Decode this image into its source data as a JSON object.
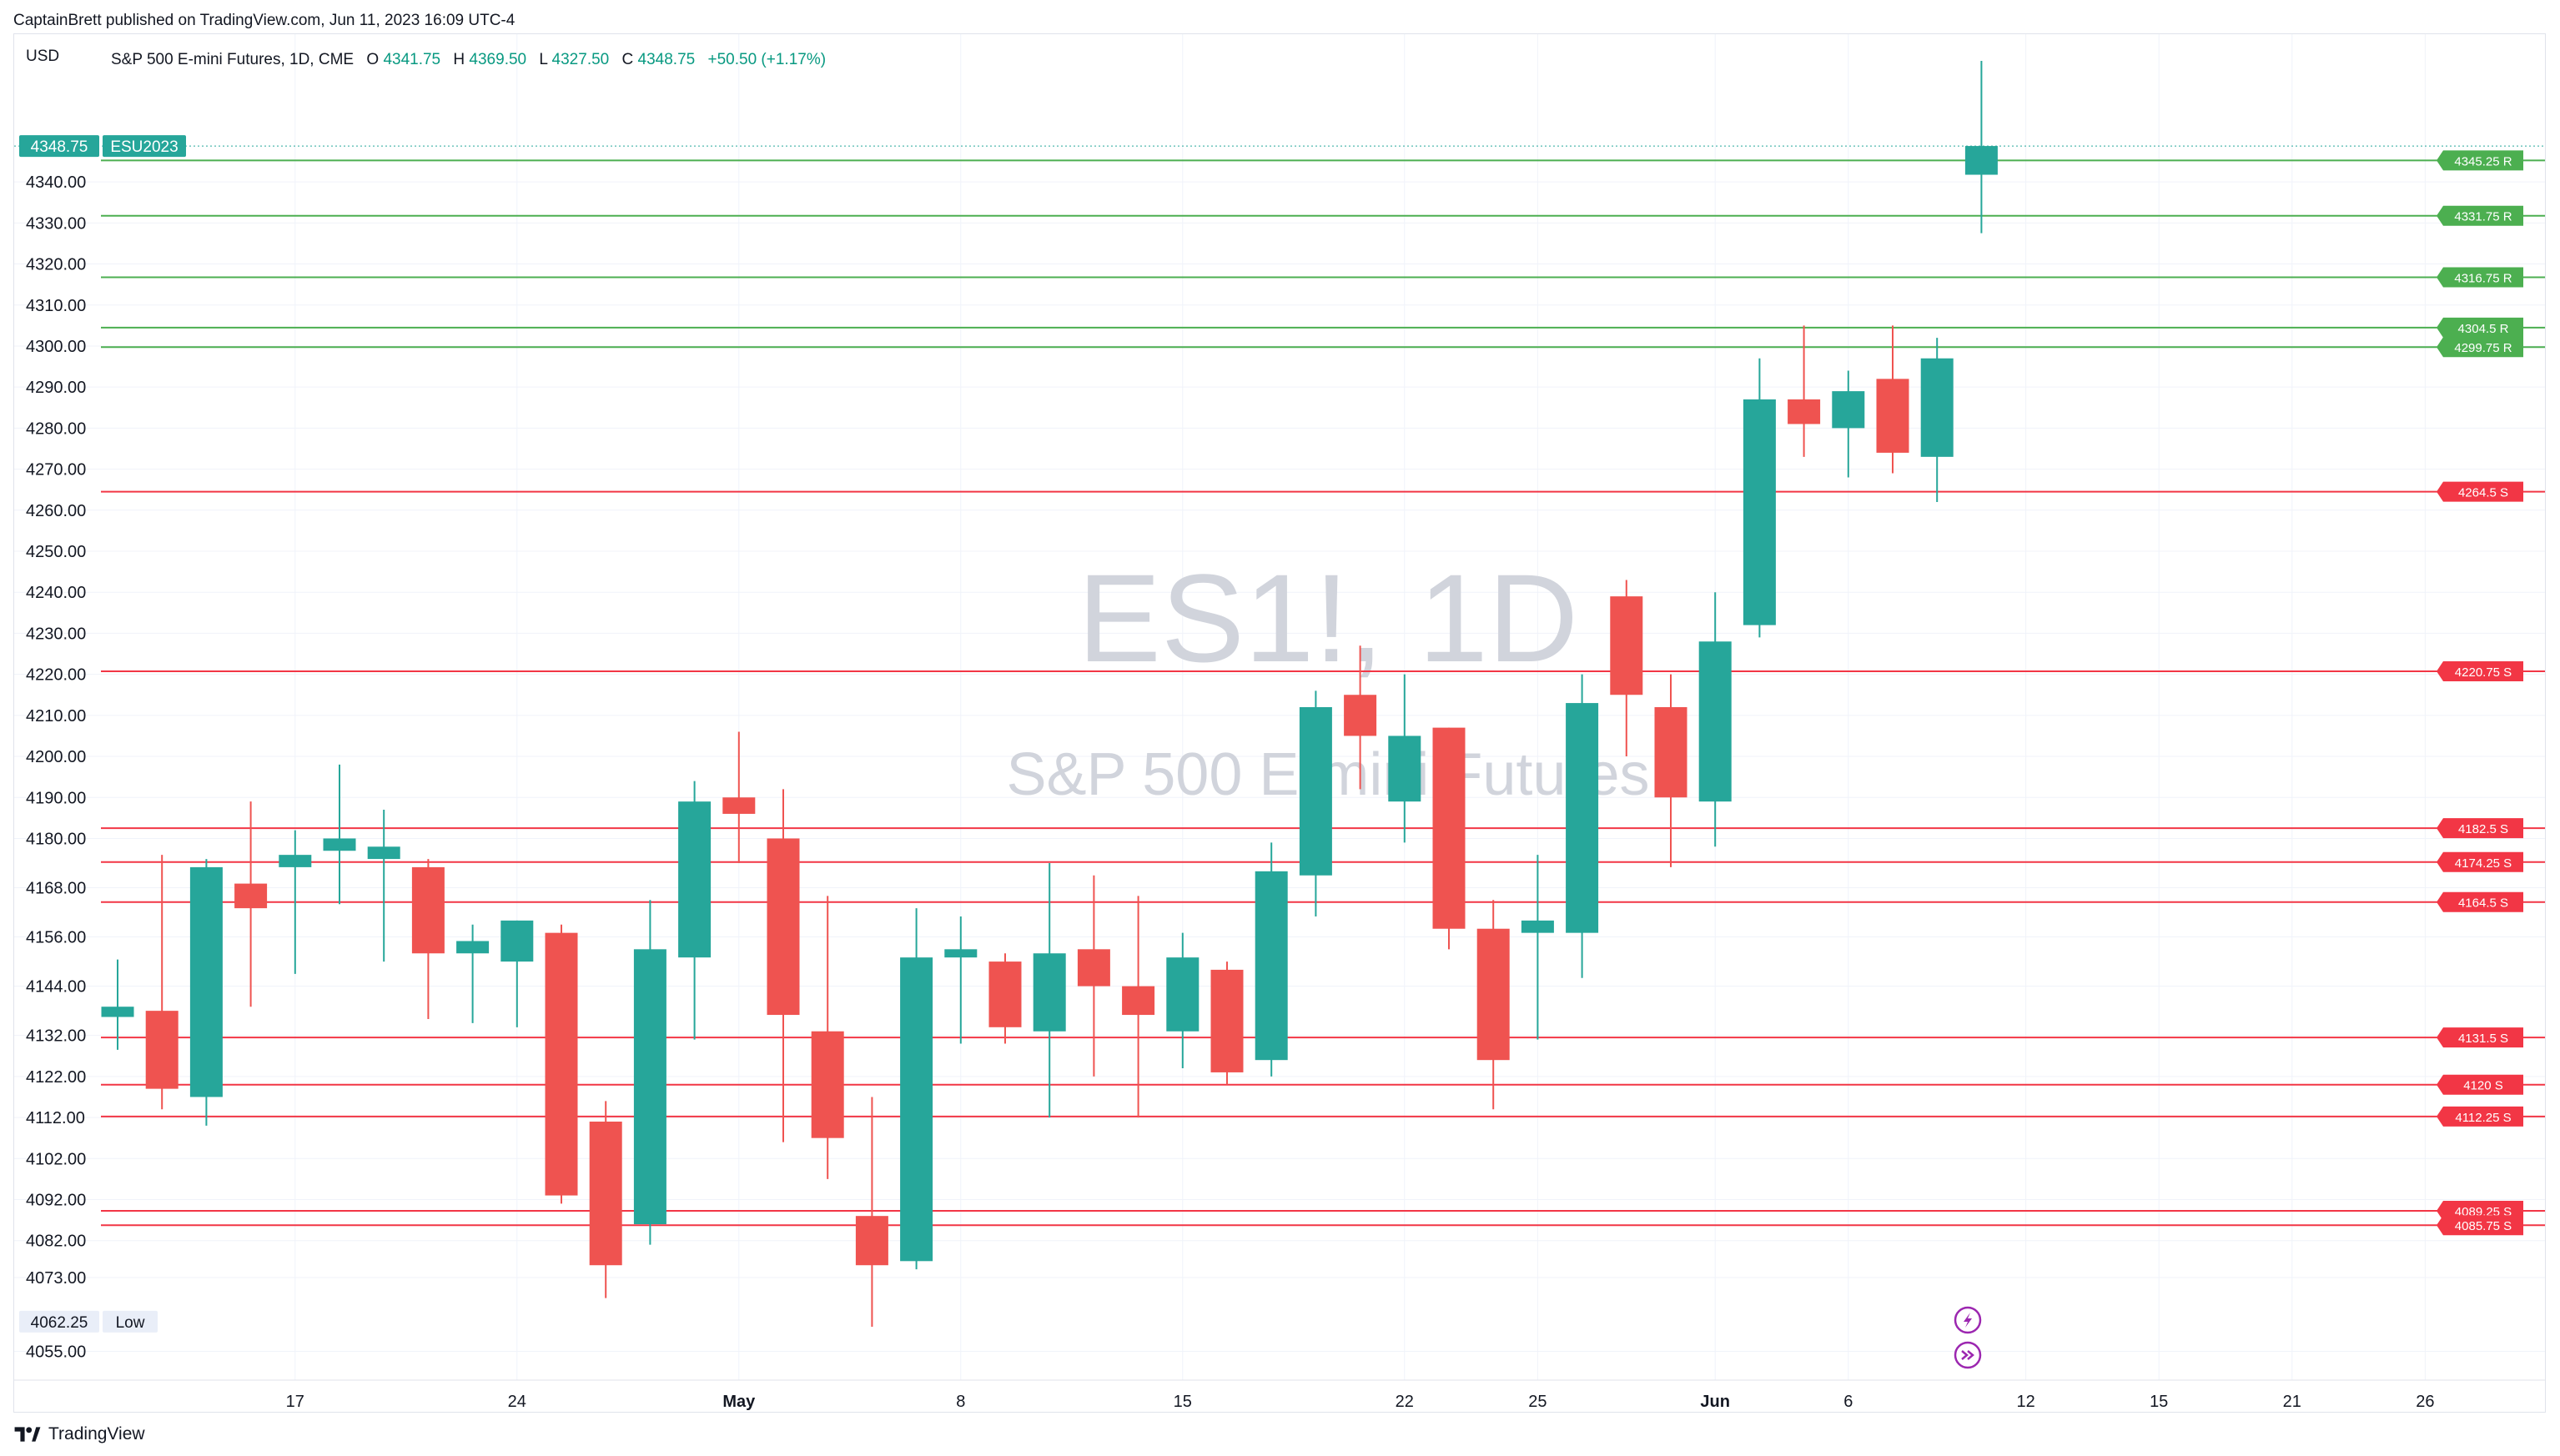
{
  "header": {
    "publish_line": "CaptainBrett published on TradingView.com, Jun 11, 2023 16:09 UTC-4"
  },
  "legend": {
    "currency": "USD",
    "symbol_name": "S&P 500 E-mini Futures, 1D, CME",
    "o_label": "O",
    "o_value": "4341.75",
    "h_label": "H",
    "h_value": "4369.50",
    "l_label": "L",
    "l_value": "4327.50",
    "c_label": "C",
    "c_value": "4348.75",
    "change": "+50.50 (+1.17%)"
  },
  "badges": {
    "last_price": "4348.75",
    "contract": "ESU2023",
    "low_value": "4062.25",
    "low_label": "Low"
  },
  "watermark": {
    "line1": "ES1!, 1D",
    "line2": "S&P 500 E-mini Futures"
  },
  "footer": {
    "brand": "TradingView"
  },
  "colors": {
    "up": "#26a69a",
    "down": "#ef5350",
    "resistance": "#4caf50",
    "support": "#f23645",
    "grid": "#f0f3fa",
    "axis_text": "#131722",
    "watermark": "#d1d4dc",
    "event_icon": "#9c27b0"
  },
  "icons": [
    "lightning-event-icon",
    "dividend-arrows-event-icon",
    "tradingview-logo-icon"
  ],
  "chart_data": {
    "type": "candlestick",
    "ylim": [
      4048,
      4376
    ],
    "y_ticks": [
      4055.0,
      4073.0,
      4082.0,
      4092.0,
      4102.0,
      4112.0,
      4122.0,
      4132.0,
      4144.0,
      4156.0,
      4168.0,
      4180.0,
      4190.0,
      4200.0,
      4210.0,
      4220.0,
      4230.0,
      4240.0,
      4250.0,
      4260.0,
      4270.0,
      4280.0,
      4290.0,
      4300.0,
      4310.0,
      4320.0,
      4330.0,
      4340.0
    ],
    "x_ticks": [
      {
        "label": "17",
        "slot": 4,
        "bold": false
      },
      {
        "label": "24",
        "slot": 9,
        "bold": false
      },
      {
        "label": "May",
        "slot": 14,
        "bold": true
      },
      {
        "label": "8",
        "slot": 19,
        "bold": false
      },
      {
        "label": "15",
        "slot": 24,
        "bold": false
      },
      {
        "label": "22",
        "slot": 29,
        "bold": false
      },
      {
        "label": "25",
        "slot": 32,
        "bold": false
      },
      {
        "label": "Jun",
        "slot": 36,
        "bold": true
      },
      {
        "label": "6",
        "slot": 39,
        "bold": false
      },
      {
        "label": "12",
        "slot": 43,
        "bold": false
      },
      {
        "label": "15",
        "slot": 46,
        "bold": false
      },
      {
        "label": "21",
        "slot": 49,
        "bold": false
      },
      {
        "label": "26",
        "slot": 52,
        "bold": false
      }
    ],
    "candles": [
      {
        "slot": 0,
        "o": 4136.5,
        "h": 4150.5,
        "l": 4128.5,
        "c": 4139.0
      },
      {
        "slot": 1,
        "o": 4138.0,
        "h": 4176.0,
        "l": 4114.0,
        "c": 4119.0
      },
      {
        "slot": 2,
        "o": 4117.0,
        "h": 4175.0,
        "l": 4110.0,
        "c": 4173.0
      },
      {
        "slot": 3,
        "o": 4169.0,
        "h": 4189.0,
        "l": 4139.0,
        "c": 4163.0
      },
      {
        "slot": 4,
        "o": 4173.0,
        "h": 4182.0,
        "l": 4147.0,
        "c": 4176.0
      },
      {
        "slot": 5,
        "o": 4177.0,
        "h": 4198.0,
        "l": 4164.0,
        "c": 4180.0
      },
      {
        "slot": 6,
        "o": 4175.0,
        "h": 4187.0,
        "l": 4150.0,
        "c": 4178.0
      },
      {
        "slot": 7,
        "o": 4173.0,
        "h": 4175.0,
        "l": 4136.0,
        "c": 4152.0
      },
      {
        "slot": 8,
        "o": 4152.0,
        "h": 4159.0,
        "l": 4135.0,
        "c": 4155.0
      },
      {
        "slot": 9,
        "o": 4150.0,
        "h": 4160.0,
        "l": 4134.0,
        "c": 4160.0
      },
      {
        "slot": 10,
        "o": 4157.0,
        "h": 4159.0,
        "l": 4091.0,
        "c": 4093.0
      },
      {
        "slot": 11,
        "o": 4111.0,
        "h": 4116.0,
        "l": 4068.0,
        "c": 4076.0
      },
      {
        "slot": 12,
        "o": 4086.0,
        "h": 4165.0,
        "l": 4081.0,
        "c": 4153.0
      },
      {
        "slot": 13,
        "o": 4151.0,
        "h": 4194.0,
        "l": 4131.0,
        "c": 4189.0
      },
      {
        "slot": 14,
        "o": 4190.0,
        "h": 4206.0,
        "l": 4174.0,
        "c": 4186.0
      },
      {
        "slot": 15,
        "o": 4180.0,
        "h": 4192.0,
        "l": 4106.0,
        "c": 4137.0
      },
      {
        "slot": 16,
        "o": 4133.0,
        "h": 4166.0,
        "l": 4097.0,
        "c": 4107.0
      },
      {
        "slot": 17,
        "o": 4088.0,
        "h": 4117.0,
        "l": 4061.0,
        "c": 4076.0
      },
      {
        "slot": 18,
        "o": 4077.0,
        "h": 4163.0,
        "l": 4075.0,
        "c": 4151.0
      },
      {
        "slot": 19,
        "o": 4151.0,
        "h": 4161.0,
        "l": 4130.0,
        "c": 4153.0
      },
      {
        "slot": 20,
        "o": 4150.0,
        "h": 4152.0,
        "l": 4130.0,
        "c": 4134.0
      },
      {
        "slot": 21,
        "o": 4133.0,
        "h": 4174.0,
        "l": 4112.0,
        "c": 4152.0
      },
      {
        "slot": 22,
        "o": 4153.0,
        "h": 4171.0,
        "l": 4122.0,
        "c": 4144.0
      },
      {
        "slot": 23,
        "o": 4144.0,
        "h": 4166.0,
        "l": 4112.0,
        "c": 4137.0
      },
      {
        "slot": 24,
        "o": 4133.0,
        "h": 4157.0,
        "l": 4124.0,
        "c": 4151.0
      },
      {
        "slot": 25,
        "o": 4148.0,
        "h": 4150.0,
        "l": 4120.0,
        "c": 4123.0
      },
      {
        "slot": 26,
        "o": 4126.0,
        "h": 4179.0,
        "l": 4122.0,
        "c": 4172.0
      },
      {
        "slot": 27,
        "o": 4171.0,
        "h": 4216.0,
        "l": 4161.0,
        "c": 4212.0
      },
      {
        "slot": 28,
        "o": 4215.0,
        "h": 4227.0,
        "l": 4192.0,
        "c": 4205.0
      },
      {
        "slot": 29,
        "o": 4189.0,
        "h": 4220.0,
        "l": 4179.0,
        "c": 4205.0
      },
      {
        "slot": 30,
        "o": 4207.0,
        "h": 4207.0,
        "l": 4153.0,
        "c": 4158.0
      },
      {
        "slot": 31,
        "o": 4158.0,
        "h": 4165.0,
        "l": 4114.0,
        "c": 4126.0
      },
      {
        "slot": 32,
        "o": 4157.0,
        "h": 4176.0,
        "l": 4131.0,
        "c": 4160.0
      },
      {
        "slot": 33,
        "o": 4157.0,
        "h": 4220.0,
        "l": 4146.0,
        "c": 4213.0
      },
      {
        "slot": 34,
        "o": 4239.0,
        "h": 4243.0,
        "l": 4200.0,
        "c": 4215.0
      },
      {
        "slot": 35,
        "o": 4212.0,
        "h": 4220.0,
        "l": 4173.0,
        "c": 4190.0
      },
      {
        "slot": 36,
        "o": 4189.0,
        "h": 4240.0,
        "l": 4178.0,
        "c": 4228.0
      },
      {
        "slot": 37,
        "o": 4232.0,
        "h": 4297.0,
        "l": 4229.0,
        "c": 4287.0
      },
      {
        "slot": 38,
        "o": 4287.0,
        "h": 4305.0,
        "l": 4273.0,
        "c": 4281.0
      },
      {
        "slot": 39,
        "o": 4280.0,
        "h": 4294.0,
        "l": 4268.0,
        "c": 4289.0
      },
      {
        "slot": 40,
        "o": 4292.0,
        "h": 4305.0,
        "l": 4269.0,
        "c": 4274.0
      },
      {
        "slot": 41,
        "o": 4273.0,
        "h": 4302.0,
        "l": 4262.0,
        "c": 4297.0
      },
      {
        "slot": 42,
        "o": 4341.75,
        "h": 4369.5,
        "l": 4327.5,
        "c": 4348.75
      }
    ],
    "levels": [
      {
        "value": 4345.25,
        "label": "4345.25 R",
        "type": "resistance"
      },
      {
        "value": 4331.75,
        "label": "4331.75 R",
        "type": "resistance"
      },
      {
        "value": 4316.75,
        "label": "4316.75 R",
        "type": "resistance"
      },
      {
        "value": 4304.5,
        "label": "4304.5 R",
        "type": "resistance"
      },
      {
        "value": 4299.75,
        "label": "4299.75 R",
        "type": "resistance"
      },
      {
        "value": 4264.5,
        "label": "4264.5 S",
        "type": "support"
      },
      {
        "value": 4220.75,
        "label": "4220.75 S",
        "type": "support"
      },
      {
        "value": 4182.5,
        "label": "4182.5 S",
        "type": "support"
      },
      {
        "value": 4174.25,
        "label": "4174.25 S",
        "type": "support"
      },
      {
        "value": 4164.5,
        "label": "4164.5 S",
        "type": "support"
      },
      {
        "value": 4131.5,
        "label": "4131.5 S",
        "type": "support"
      },
      {
        "value": 4120,
        "label": "4120 S",
        "type": "support"
      },
      {
        "value": 4112.25,
        "label": "4112.25 S",
        "type": "support"
      },
      {
        "value": 4089.25,
        "label": "4089.25 S",
        "type": "support"
      },
      {
        "value": 4085.75,
        "label": "4085.75 S",
        "type": "support"
      }
    ],
    "last_price": 4348.75,
    "low": 4062.25,
    "grid": true
  }
}
